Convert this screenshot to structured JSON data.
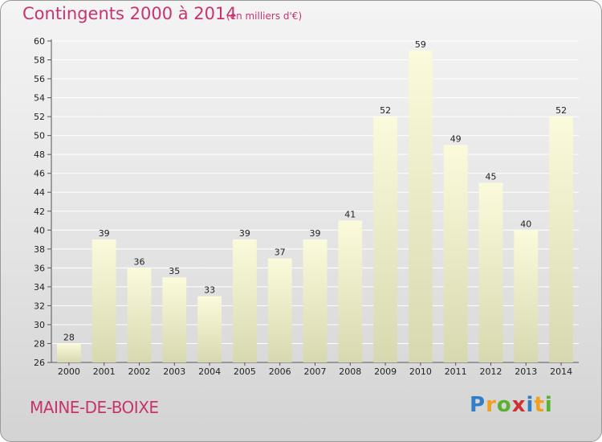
{
  "header": {
    "title": "Contingents 2000 à 2014",
    "unit": "(en milliers d'€)"
  },
  "footer": {
    "commune": "MAINE-DE-BOIXE",
    "logo": [
      "P",
      "r",
      "o",
      "x",
      "i",
      "t",
      "i"
    ]
  },
  "colors": {
    "accent": "#c8336f",
    "bar_top": "#fbfbdc",
    "bar_bottom": "#d8d8b0"
  },
  "chart_data": {
    "type": "bar",
    "title": "Contingents 2000 à 2014",
    "xlabel": "",
    "ylabel": "",
    "categories": [
      "2000",
      "2001",
      "2002",
      "2003",
      "2004",
      "2005",
      "2006",
      "2007",
      "2008",
      "2009",
      "2010",
      "2011",
      "2012",
      "2013",
      "2014"
    ],
    "values": [
      28,
      39,
      36,
      35,
      33,
      39,
      37,
      39,
      41,
      52,
      59,
      49,
      45,
      40,
      52
    ],
    "ylim": [
      26,
      60
    ],
    "yticks": [
      26,
      28,
      30,
      32,
      34,
      36,
      38,
      40,
      42,
      44,
      46,
      48,
      50,
      52,
      54,
      56,
      58,
      60
    ],
    "grid": true
  }
}
